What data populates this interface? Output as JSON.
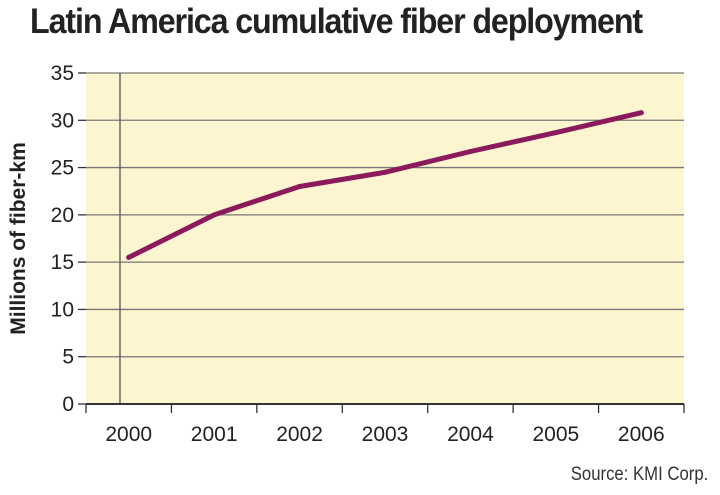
{
  "chart_data": {
    "type": "line",
    "title": "Latin America cumulative fiber deployment",
    "ylabel": "Millions of fiber-km",
    "xlabel": "",
    "categories": [
      "2000",
      "2001",
      "2002",
      "2003",
      "2004",
      "2005",
      "2006"
    ],
    "series": [
      {
        "name": "Cumulative fiber deployment",
        "values": [
          15.5,
          20,
          23,
          24.5,
          26.7,
          28.7,
          30.8
        ],
        "color": "#8b1a5c"
      }
    ],
    "ylim": [
      0,
      35
    ],
    "yticks": [
      "0",
      "5",
      "10",
      "15",
      "20",
      "25",
      "30",
      "35"
    ],
    "grid": true,
    "source": "Source: KMI Corp.",
    "colors": {
      "plot_bg": "#fdf5cf",
      "grid": "#777777",
      "line": "#8b1a5c"
    }
  }
}
